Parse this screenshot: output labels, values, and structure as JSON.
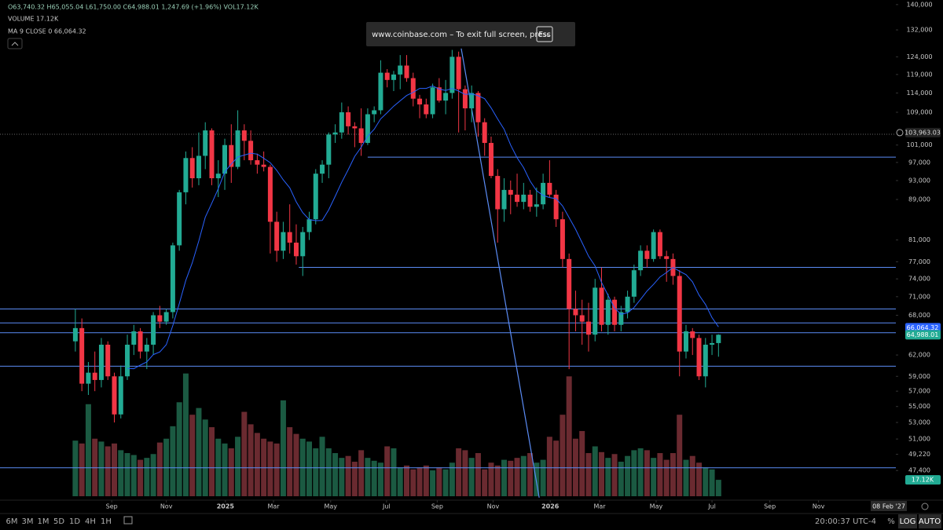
{
  "chart_data": {
    "type": "candlestick",
    "header": {
      "ohlc": "O63,740.32 H65,055.04 L61,750.00 C64,988.01 1,247.69 (+1.96%) VOL17.12K",
      "volume": "VOLUME 17.12K",
      "ma": "MA 9 CLOSE 0 66,064.32"
    },
    "banner": {
      "text": "www.coinbase.com – To exit full screen, press",
      "key": "Esc"
    },
    "up_color": "#22ab94",
    "down_color": "#f23645",
    "vol_up_color": "#1b5a42",
    "vol_down_color": "#6a2a30",
    "ma_color": "#2962ff",
    "line_color": "#5b8cf5",
    "log_scale": true,
    "ylim": [
      44000,
      141500
    ],
    "yticks": [
      {
        "value": 140000,
        "label": "140,000"
      },
      {
        "value": 132000,
        "label": "132,000"
      },
      {
        "value": 124000,
        "label": "124,000"
      },
      {
        "value": 119000,
        "label": "119,000"
      },
      {
        "value": 114000,
        "label": "114,000"
      },
      {
        "value": 109000,
        "label": "109,000"
      },
      {
        "value": 101000,
        "label": "101,000"
      },
      {
        "value": 97000,
        "label": "97,000"
      },
      {
        "value": 93000,
        "label": "93,000"
      },
      {
        "value": 89000,
        "label": "89,000"
      },
      {
        "value": 81000,
        "label": "81,000"
      },
      {
        "value": 77000,
        "label": "77,000"
      },
      {
        "value": 74000,
        "label": "74,000"
      },
      {
        "value": 71000,
        "label": "71,000"
      },
      {
        "value": 68000,
        "label": "68,000"
      },
      {
        "value": 62000,
        "label": "62,000"
      },
      {
        "value": 59000,
        "label": "59,000"
      },
      {
        "value": 57000,
        "label": "57,000"
      },
      {
        "value": 55000,
        "label": "55,000"
      },
      {
        "value": 53000,
        "label": "53,000"
      },
      {
        "value": 51000,
        "label": "51,000"
      },
      {
        "value": 49220,
        "label": "49,220"
      },
      {
        "value": 47400,
        "label": "47,400"
      }
    ],
    "xlim": [
      -11.6,
      126.3
    ],
    "xticks": [
      {
        "value": 5.6,
        "label": "Sep"
      },
      {
        "value": 14.0,
        "label": "Nov"
      },
      {
        "value": 23.1,
        "label": "2025"
      },
      {
        "value": 30.5,
        "label": "Mar"
      },
      {
        "value": 39.3,
        "label": "May"
      },
      {
        "value": 47.9,
        "label": "Jul"
      },
      {
        "value": 55.7,
        "label": "Sep"
      },
      {
        "value": 64.3,
        "label": "Nov"
      },
      {
        "value": 73.1,
        "label": "2026"
      },
      {
        "value": 80.7,
        "label": "Mar"
      },
      {
        "value": 89.4,
        "label": "May"
      },
      {
        "value": 98.0,
        "label": "Jul"
      },
      {
        "value": 106.9,
        "label": "Sep"
      },
      {
        "value": 114.4,
        "label": "Nov"
      }
    ],
    "candles": [
      [
        64000,
        69000,
        62500,
        66000
      ],
      [
        66000,
        67500,
        57000,
        58000
      ],
      [
        58000,
        61000,
        56500,
        59500
      ],
      [
        59500,
        62500,
        57000,
        58500
      ],
      [
        58500,
        64500,
        57500,
        63500
      ],
      [
        63500,
        64000,
        58500,
        59000
      ],
      [
        59000,
        59500,
        53000,
        54000
      ],
      [
        54000,
        60500,
        53500,
        59000
      ],
      [
        59000,
        65000,
        58500,
        63500
      ],
      [
        63500,
        66500,
        62000,
        65500
      ],
      [
        65500,
        66000,
        61500,
        62500
      ],
      [
        62500,
        64500,
        60000,
        63500
      ],
      [
        63500,
        68500,
        62000,
        68000
      ],
      [
        68000,
        69500,
        66000,
        67000
      ],
      [
        67000,
        69000,
        66500,
        68500
      ],
      [
        68500,
        80500,
        67500,
        80000
      ],
      [
        80000,
        91000,
        79000,
        90500
      ],
      [
        90500,
        99500,
        88000,
        98000
      ],
      [
        98000,
        100500,
        91500,
        93500
      ],
      [
        93500,
        104000,
        92000,
        98500
      ],
      [
        98500,
        106500,
        95500,
        104500
      ],
      [
        104500,
        105000,
        92000,
        93500
      ],
      [
        93500,
        97500,
        89500,
        94500
      ],
      [
        94500,
        102500,
        91000,
        101000
      ],
      [
        101000,
        106000,
        92500,
        96000
      ],
      [
        96000,
        109500,
        95500,
        104500
      ],
      [
        104500,
        106000,
        97500,
        102000
      ],
      [
        102000,
        104500,
        96500,
        97500
      ],
      [
        97500,
        99000,
        94500,
        96500
      ],
      [
        96500,
        99500,
        95000,
        96000
      ],
      [
        96000,
        96500,
        78500,
        84500
      ],
      [
        84500,
        86500,
        77000,
        79000
      ],
      [
        79000,
        84500,
        77500,
        82500
      ],
      [
        82500,
        88000,
        78500,
        80500
      ],
      [
        80500,
        84000,
        76500,
        78000
      ],
      [
        78000,
        83500,
        74500,
        82500
      ],
      [
        82500,
        86500,
        81000,
        85000
      ],
      [
        85000,
        95500,
        84000,
        94500
      ],
      [
        94500,
        97500,
        92500,
        96500
      ],
      [
        96500,
        104000,
        93500,
        103500
      ],
      [
        103500,
        106000,
        101500,
        104000
      ],
      [
        104000,
        111500,
        102500,
        109000
      ],
      [
        109000,
        110500,
        103500,
        105500
      ],
      [
        105500,
        106500,
        100500,
        105000
      ],
      [
        105000,
        110000,
        98500,
        101500
      ],
      [
        101500,
        110000,
        101000,
        108500
      ],
      [
        108500,
        110500,
        106500,
        109500
      ],
      [
        109500,
        123000,
        108500,
        119500
      ],
      [
        119500,
        120500,
        115500,
        117500
      ],
      [
        117500,
        120000,
        114500,
        119000
      ],
      [
        119000,
        124500,
        115000,
        121500
      ],
      [
        121500,
        124500,
        117000,
        118000
      ],
      [
        118000,
        119500,
        110500,
        112500
      ],
      [
        112500,
        113500,
        107500,
        111000
      ],
      [
        111000,
        112500,
        107500,
        108500
      ],
      [
        108500,
        116500,
        107500,
        115500
      ],
      [
        115500,
        118000,
        111500,
        112000
      ],
      [
        112000,
        117500,
        108500,
        114000
      ],
      [
        114000,
        126000,
        112500,
        124000
      ],
      [
        124000,
        125500,
        104000,
        115000
      ],
      [
        115000,
        116000,
        104500,
        110000
      ],
      [
        110000,
        116000,
        106500,
        114000
      ],
      [
        114000,
        114500,
        103000,
        106500
      ],
      [
        106500,
        107500,
        98500,
        101500
      ],
      [
        101500,
        103000,
        93500,
        94000
      ],
      [
        94000,
        95500,
        80500,
        87000
      ],
      [
        87000,
        93500,
        84500,
        91000
      ],
      [
        91000,
        93000,
        86000,
        90000
      ],
      [
        90000,
        94500,
        87500,
        88500
      ],
      [
        88500,
        92500,
        87000,
        90000
      ],
      [
        90000,
        91000,
        86500,
        87500
      ],
      [
        87500,
        91500,
        85500,
        88000
      ],
      [
        88000,
        94500,
        87000,
        92500
      ],
      [
        92500,
        97500,
        89500,
        90000
      ],
      [
        90000,
        91000,
        83500,
        85000
      ],
      [
        85000,
        86500,
        76000,
        77500
      ],
      [
        77500,
        78500,
        60000,
        69000
      ],
      [
        69000,
        72000,
        65500,
        68000
      ],
      [
        68000,
        70500,
        63500,
        67000
      ],
      [
        67000,
        70000,
        62500,
        65000
      ],
      [
        65000,
        74000,
        64000,
        72500
      ],
      [
        72500,
        76000,
        65500,
        66500
      ],
      [
        66500,
        71500,
        65000,
        70500
      ],
      [
        70500,
        71000,
        65500,
        66500
      ],
      [
        66500,
        69500,
        65500,
        68500
      ],
      [
        68500,
        72000,
        67500,
        71000
      ],
      [
        71000,
        76500,
        70000,
        75500
      ],
      [
        75500,
        80000,
        74500,
        79000
      ],
      [
        79000,
        80000,
        76000,
        77500
      ],
      [
        77500,
        83000,
        77000,
        82500
      ],
      [
        82500,
        83000,
        77500,
        78000
      ],
      [
        78000,
        79000,
        73500,
        77500
      ],
      [
        77500,
        78500,
        73000,
        74500
      ],
      [
        74500,
        75500,
        59000,
        62500
      ],
      [
        62500,
        66500,
        61500,
        65500
      ],
      [
        65500,
        66000,
        62000,
        64500
      ],
      [
        64500,
        65000,
        58500,
        59000
      ],
      [
        59000,
        64500,
        57500,
        63500
      ],
      [
        63500,
        65000,
        62000,
        63740.32
      ],
      [
        63740.32,
        65055.04,
        61750,
        64988.01
      ]
    ],
    "volume": [
      58,
      55,
      96,
      60,
      57,
      52,
      55,
      48,
      45,
      43,
      38,
      40,
      44,
      56,
      60,
      73,
      98,
      128,
      85,
      92,
      80,
      72,
      60,
      55,
      50,
      62,
      88,
      75,
      66,
      60,
      57,
      55,
      100,
      72,
      65,
      60,
      57,
      50,
      62,
      50,
      45,
      40,
      42,
      36,
      48,
      40,
      37,
      35,
      52,
      50,
      30,
      32,
      28,
      30,
      32,
      27,
      30,
      28,
      35,
      50,
      48,
      40,
      45,
      28,
      35,
      32,
      38,
      37,
      40,
      42,
      45,
      35,
      38,
      62,
      58,
      85,
      125,
      60,
      68,
      45,
      52,
      46,
      40,
      44,
      36,
      42,
      48,
      50,
      48,
      40,
      45,
      38,
      45,
      85,
      38,
      42,
      35,
      30,
      28,
      17.12
    ],
    "vlim": [
      0,
      131
    ],
    "ma_period": 9,
    "labels": {
      "ma": {
        "value": 66064.32,
        "label": "66,064.32"
      },
      "last": {
        "value": 64988.01,
        "label": "64,988.01"
      },
      "volume": {
        "value": 17.12,
        "label": "17.12K"
      },
      "crosshair": {
        "value": 103963.03,
        "label": "103,963.03"
      },
      "time": "08 Feb '27"
    },
    "hlines": [
      {
        "value": 98200,
        "x0": 45
      },
      {
        "value": 76000,
        "x0": 34.4
      },
      {
        "value": 69000,
        "x0": -11.6
      },
      {
        "value": 66800,
        "x0": -11.6
      },
      {
        "value": 65300,
        "x0": -11.6
      },
      {
        "value": 60400,
        "x0": -11.6
      },
      {
        "value": 47700,
        "x0": -11.6
      }
    ],
    "trendline": {
      "x": [
        59.4,
        71.4
      ],
      "y": [
        126400,
        44500
      ]
    },
    "toolbar": {
      "ranges": [
        "6M",
        "3M",
        "1M",
        "5D",
        "1D",
        "4H",
        "1H"
      ],
      "clock": "20:00:37 UTC-4",
      "percent": "%",
      "log": "LOG",
      "auto": "AUTO"
    }
  }
}
